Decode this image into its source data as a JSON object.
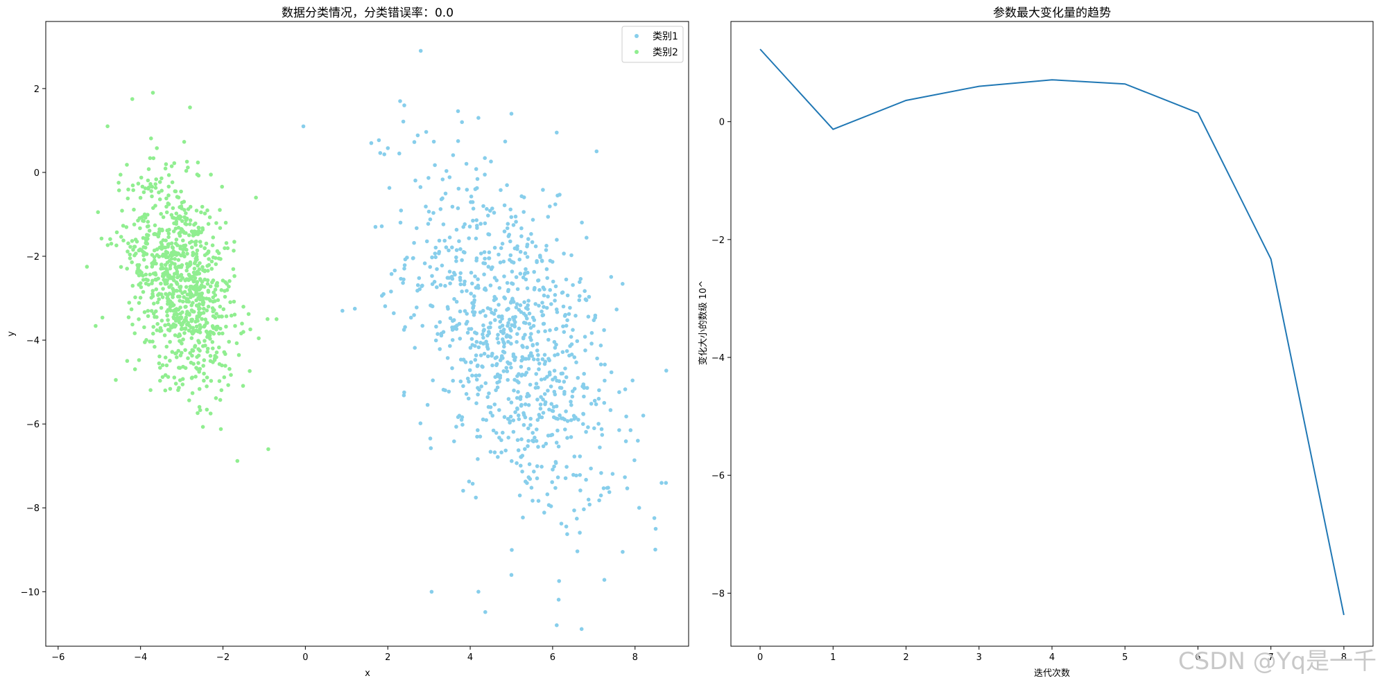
{
  "watermark": "CSDN @Yq是一千",
  "chart_data": [
    {
      "type": "scatter",
      "title": "数据分类情况，分类错误率：0.0",
      "xlabel": "x",
      "ylabel": "y",
      "xlim": [
        -6.3,
        9.3
      ],
      "ylim": [
        -11.3,
        3.6
      ],
      "xticks": [
        -6,
        -4,
        -2,
        0,
        2,
        4,
        6,
        8
      ],
      "xtick_labels": [
        "−6",
        "−4",
        "−2",
        "0",
        "2",
        "4",
        "6",
        "8"
      ],
      "yticks": [
        2,
        0,
        -2,
        -4,
        -6,
        -8,
        -10
      ],
      "ytick_labels": [
        "2",
        "0",
        "−2",
        "−4",
        "−6",
        "−8",
        "−10"
      ],
      "legend_position": "top-right",
      "series": [
        {
          "name": "类别1",
          "color": "#87ceeb",
          "n_points": 900,
          "center": [
            5.0,
            -4.0
          ],
          "spread": [
            1.25,
            2.1
          ],
          "correlation": -0.5,
          "x": [
            2.8,
            2.3,
            2.4,
            5.0,
            4.2,
            3.8,
            1.2,
            4.2,
            5.0,
            6.1,
            8.5,
            8.2,
            7.7,
            8.1,
            0.9,
            1.7,
            1.6,
            6.1
          ],
          "y": [
            2.9,
            1.7,
            1.6,
            1.4,
            1.3,
            1.2,
            -3.25,
            -10.0,
            -9.6,
            -10.8,
            -8.5,
            -5.8,
            -9.05,
            -8.0,
            -3.3,
            -1.3,
            0.7,
            0.95
          ]
        },
        {
          "name": "类别2",
          "color": "#90ee90",
          "n_points": 900,
          "center": [
            -3.0,
            -2.6
          ],
          "spread": [
            0.65,
            1.25
          ],
          "correlation": -0.35,
          "x": [
            -3.7,
            -4.2,
            -4.8,
            -5.3,
            -4.6,
            -3.4,
            -2.3,
            -0.9,
            -1.2,
            -0.7,
            -2.8
          ],
          "y": [
            1.9,
            1.75,
            1.1,
            -2.25,
            -4.95,
            -5.2,
            -5.75,
            -6.6,
            -0.6,
            -3.5,
            1.55
          ]
        }
      ]
    },
    {
      "type": "line",
      "title": "参数最大变化量的趋势",
      "xlabel": "迭代次数",
      "ylabel": "变化大小的数级 10^",
      "xlim": [
        -0.4,
        8.4
      ],
      "ylim": [
        -8.9,
        1.7
      ],
      "xticks": [
        0,
        1,
        2,
        3,
        4,
        5,
        6,
        7,
        8
      ],
      "xtick_labels": [
        "0",
        "1",
        "2",
        "3",
        "4",
        "5",
        "6",
        "7",
        "8"
      ],
      "yticks": [
        0,
        -2,
        -4,
        -6,
        -8
      ],
      "ytick_labels": [
        "0",
        "−2",
        "−4",
        "−6",
        "−8"
      ],
      "series": [
        {
          "color": "#1f77b4",
          "x": [
            0,
            1,
            2,
            3,
            4,
            5,
            6,
            7,
            8
          ],
          "y": [
            1.23,
            -0.13,
            0.36,
            0.6,
            0.71,
            0.64,
            0.15,
            -2.33,
            -8.37
          ]
        }
      ]
    }
  ]
}
